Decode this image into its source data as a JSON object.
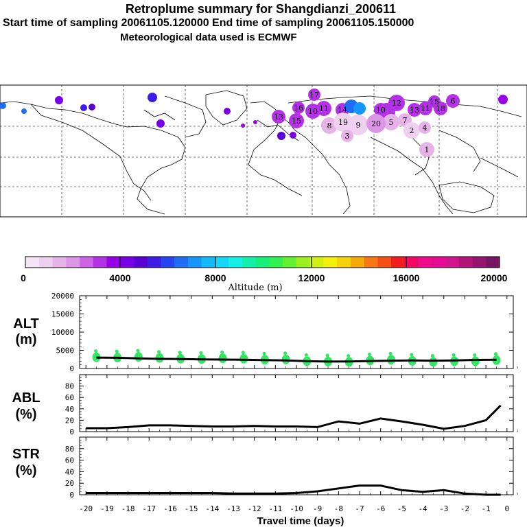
{
  "header": {
    "title": "Retroplume summary for Shangdianzi_200611",
    "sampling": "Start time of sampling 20061105.120000     End time of sampling 20061105.150000",
    "met": "Meteorological data used is ECMWF"
  },
  "colors": {
    "scale": [
      "#f5e6f5",
      "#efd0ef",
      "#e6b3e6",
      "#dc96e6",
      "#cd64e6",
      "#b432e6",
      "#9600e6",
      "#7800e6",
      "#5a00d2",
      "#3c1ee6",
      "#2846f0",
      "#1e6ef5",
      "#1496fa",
      "#14b9fa",
      "#14d7f5",
      "#14f0e6",
      "#14f0aa",
      "#14f078",
      "#32f050",
      "#64f032",
      "#9bf01e",
      "#d2f014",
      "#f5f00a",
      "#f5d20a",
      "#f5aa0a",
      "#f57814",
      "#f55014",
      "#f01e1e",
      "#f00a64",
      "#f00a8c",
      "#e60a96",
      "#d2148c",
      "#b41478",
      "#96146e",
      "#781464"
    ],
    "points": "#32e664",
    "line": "#000000"
  },
  "colorbar": {
    "ticks": [
      "0",
      "4000",
      "8000",
      "12000",
      "16000",
      "20000"
    ],
    "label": "Altitude (m)"
  },
  "panels": {
    "alt": {
      "name": "ALT",
      "unit": "(m)"
    },
    "abl": {
      "name": "ABL",
      "unit": "(%)"
    },
    "str": {
      "name": "STR",
      "unit": "(%)"
    }
  },
  "chart_data": [
    {
      "type": "line",
      "panel": "ALT",
      "ylabel": "ALT (m)",
      "ylim": [
        0,
        20000
      ],
      "yticks": [
        "20000",
        "15000",
        "10000",
        "5000",
        "0"
      ],
      "x": [
        -19.5,
        -18.5,
        -17.5,
        -16.5,
        -15.5,
        -14.5,
        -13.5,
        -12.5,
        -11.5,
        -10.5,
        -9.5,
        -8.5,
        -7.5,
        -6.5,
        -5.5,
        -4.5,
        -3.5,
        -2.5,
        -1.5,
        -0.5
      ],
      "series": [
        {
          "name": "mean altitude",
          "values": [
            3000,
            2950,
            2800,
            2650,
            2600,
            2500,
            2450,
            2400,
            2300,
            2200,
            2000,
            1900,
            1950,
            2050,
            2150,
            2200,
            2150,
            2200,
            2350,
            2400
          ]
        },
        {
          "name": "cluster altitude",
          "values": [
            3100,
            3000,
            3200,
            2900,
            2700,
            2600,
            2800,
            2700,
            2400,
            2500,
            2000,
            1900,
            1800,
            2200,
            2400,
            2100,
            1800,
            2000,
            2000,
            2300
          ]
        }
      ]
    },
    {
      "type": "line",
      "panel": "ABL",
      "ylabel": "ABL (%)",
      "ylim": [
        0,
        100
      ],
      "yticks": [
        "80",
        "60",
        "40",
        "20",
        "0"
      ],
      "x": [
        -20,
        -19,
        -18,
        -17,
        -16,
        -15,
        -14,
        -13,
        -12,
        -11,
        -10,
        -9,
        -8,
        -7,
        -6,
        -5,
        -4,
        -3,
        -2,
        -1,
        -0.3
      ],
      "series": [
        {
          "name": "ABL",
          "values": [
            6,
            6,
            8,
            11,
            11,
            10,
            9,
            9,
            10,
            9,
            9,
            8,
            18,
            14,
            23,
            18,
            12,
            5,
            10,
            20,
            46
          ]
        }
      ]
    },
    {
      "type": "line",
      "panel": "STR",
      "ylabel": "STR (%)",
      "ylim": [
        0,
        100
      ],
      "yticks": [
        "80",
        "60",
        "40",
        "20",
        "0"
      ],
      "x": [
        -20,
        -19,
        -18,
        -17,
        -16,
        -15,
        -14,
        -13,
        -12,
        -11,
        -10,
        -9,
        -8,
        -7,
        -6,
        -5,
        -4,
        -3,
        -2,
        -1,
        -0.3
      ],
      "series": [
        {
          "name": "STR",
          "values": [
            3,
            3,
            3,
            3,
            3,
            3,
            3,
            2,
            2,
            2,
            3,
            6,
            11,
            16,
            16,
            8,
            5,
            8,
            2,
            0,
            0
          ]
        }
      ]
    }
  ],
  "xaxis": {
    "label": "Travel time (days)",
    "ticks": [
      "-20",
      "-19",
      "-18",
      "-17",
      "-16",
      "-15",
      "-14",
      "-13",
      "-12",
      "-11",
      "-10",
      "-9",
      "-8",
      "-7",
      "-6",
      "-5",
      "-4",
      "-3",
      "-2",
      "-1",
      "0"
    ]
  },
  "map": {
    "labels": [
      "13",
      "16",
      "15",
      "10",
      "11",
      "14",
      "17",
      "10",
      "12",
      "13",
      "11",
      "15",
      "18",
      "6",
      "20",
      "5",
      "7",
      "4",
      "1",
      "3",
      "8",
      "9",
      "2",
      "19"
    ]
  }
}
